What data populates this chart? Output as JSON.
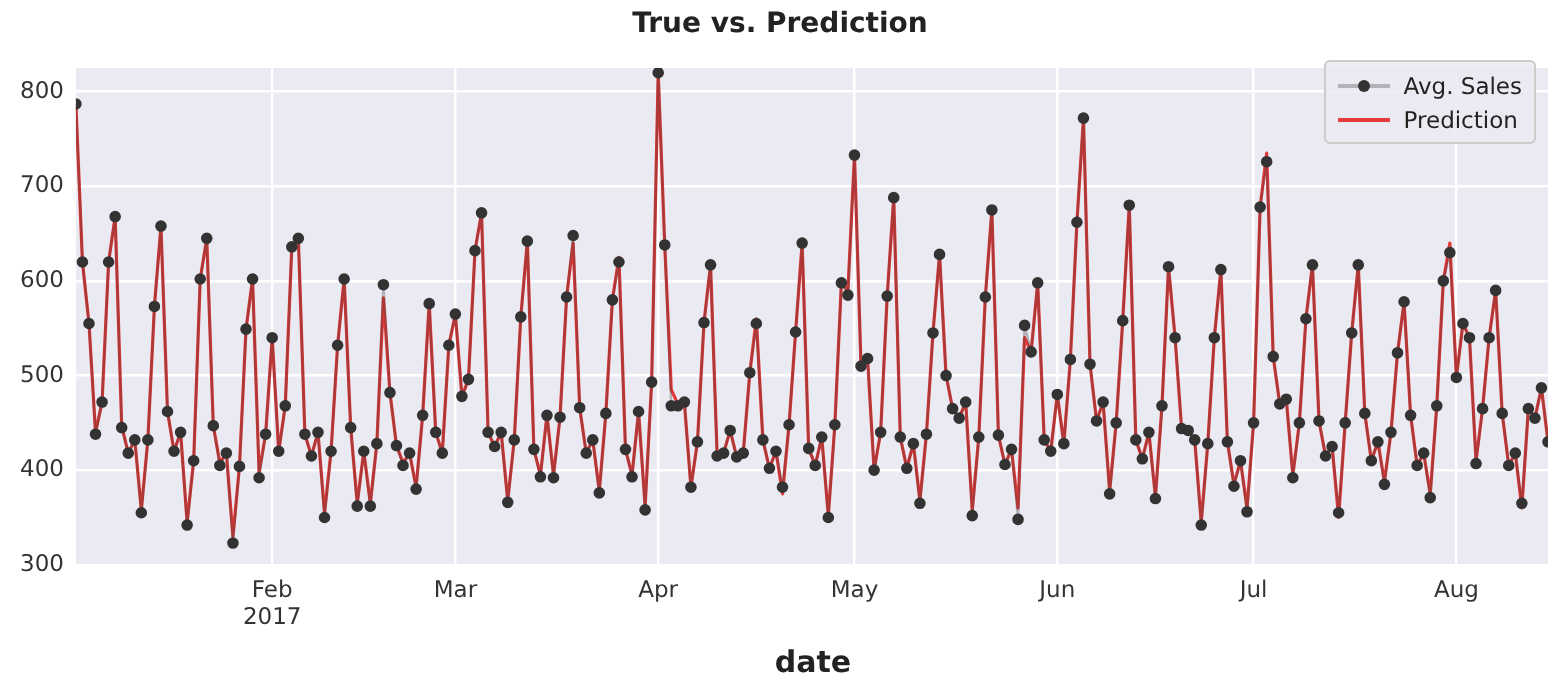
{
  "chart_data": {
    "type": "line",
    "title": "True vs. Prediction",
    "xlabel": "date",
    "x": [
      "2017-01-02",
      "2017-01-03",
      "2017-01-04",
      "2017-01-05",
      "2017-01-06",
      "2017-01-07",
      "2017-01-08",
      "2017-01-09",
      "2017-01-10",
      "2017-01-11",
      "2017-01-12",
      "2017-01-13",
      "2017-01-14",
      "2017-01-15",
      "2017-01-16",
      "2017-01-17",
      "2017-01-18",
      "2017-01-19",
      "2017-01-20",
      "2017-01-21",
      "2017-01-22",
      "2017-01-23",
      "2017-01-24",
      "2017-01-25",
      "2017-01-26",
      "2017-01-27",
      "2017-01-28",
      "2017-01-29",
      "2017-01-30",
      "2017-01-31",
      "2017-02-01",
      "2017-02-02",
      "2017-02-03",
      "2017-02-04",
      "2017-02-05",
      "2017-02-06",
      "2017-02-07",
      "2017-02-08",
      "2017-02-09",
      "2017-02-10",
      "2017-02-11",
      "2017-02-12",
      "2017-02-13",
      "2017-02-14",
      "2017-02-15",
      "2017-02-16",
      "2017-02-17",
      "2017-02-18",
      "2017-02-19",
      "2017-02-20",
      "2017-02-21",
      "2017-02-22",
      "2017-02-23",
      "2017-02-24",
      "2017-02-25",
      "2017-02-26",
      "2017-02-27",
      "2017-02-28",
      "2017-03-01",
      "2017-03-02",
      "2017-03-03",
      "2017-03-04",
      "2017-03-05",
      "2017-03-06",
      "2017-03-07",
      "2017-03-08",
      "2017-03-09",
      "2017-03-10",
      "2017-03-11",
      "2017-03-12",
      "2017-03-13",
      "2017-03-14",
      "2017-03-15",
      "2017-03-16",
      "2017-03-17",
      "2017-03-18",
      "2017-03-19",
      "2017-03-20",
      "2017-03-21",
      "2017-03-22",
      "2017-03-23",
      "2017-03-24",
      "2017-03-25",
      "2017-03-26",
      "2017-03-27",
      "2017-03-28",
      "2017-03-29",
      "2017-03-30",
      "2017-03-31",
      "2017-04-01",
      "2017-04-02",
      "2017-04-03",
      "2017-04-04",
      "2017-04-05",
      "2017-04-06",
      "2017-04-07",
      "2017-04-08",
      "2017-04-09",
      "2017-04-10",
      "2017-04-11",
      "2017-04-12",
      "2017-04-13",
      "2017-04-14",
      "2017-04-15",
      "2017-04-16",
      "2017-04-17",
      "2017-04-18",
      "2017-04-19",
      "2017-04-20",
      "2017-04-21",
      "2017-04-22",
      "2017-04-23",
      "2017-04-24",
      "2017-04-25",
      "2017-04-26",
      "2017-04-27",
      "2017-04-28",
      "2017-04-29",
      "2017-04-30",
      "2017-05-01",
      "2017-05-02",
      "2017-05-03",
      "2017-05-04",
      "2017-05-05",
      "2017-05-06",
      "2017-05-07",
      "2017-05-08",
      "2017-05-09",
      "2017-05-10",
      "2017-05-11",
      "2017-05-12",
      "2017-05-13",
      "2017-05-14",
      "2017-05-15",
      "2017-05-16",
      "2017-05-17",
      "2017-05-18",
      "2017-05-19",
      "2017-05-20",
      "2017-05-21",
      "2017-05-22",
      "2017-05-23",
      "2017-05-24",
      "2017-05-25",
      "2017-05-26",
      "2017-05-27",
      "2017-05-28",
      "2017-05-29",
      "2017-05-30",
      "2017-05-31",
      "2017-06-01",
      "2017-06-02",
      "2017-06-03",
      "2017-06-04",
      "2017-06-05",
      "2017-06-06",
      "2017-06-07",
      "2017-06-08",
      "2017-06-09",
      "2017-06-10",
      "2017-06-11",
      "2017-06-12",
      "2017-06-13",
      "2017-06-14",
      "2017-06-15",
      "2017-06-16",
      "2017-06-17",
      "2017-06-18",
      "2017-06-19",
      "2017-06-20",
      "2017-06-21",
      "2017-06-22",
      "2017-06-23",
      "2017-06-24",
      "2017-06-25",
      "2017-06-26",
      "2017-06-27",
      "2017-06-28",
      "2017-06-29",
      "2017-06-30",
      "2017-07-01",
      "2017-07-02",
      "2017-07-03",
      "2017-07-04",
      "2017-07-05",
      "2017-07-06",
      "2017-07-07",
      "2017-07-08",
      "2017-07-09",
      "2017-07-10",
      "2017-07-11",
      "2017-07-12",
      "2017-07-13",
      "2017-07-14",
      "2017-07-15",
      "2017-07-16",
      "2017-07-17",
      "2017-07-18",
      "2017-07-19",
      "2017-07-20",
      "2017-07-21",
      "2017-07-22",
      "2017-07-23",
      "2017-07-24",
      "2017-07-25",
      "2017-07-26",
      "2017-07-27",
      "2017-07-28",
      "2017-07-29",
      "2017-07-30",
      "2017-07-31",
      "2017-08-01",
      "2017-08-02",
      "2017-08-03",
      "2017-08-04",
      "2017-08-05",
      "2017-08-06",
      "2017-08-07",
      "2017-08-08",
      "2017-08-09",
      "2017-08-10",
      "2017-08-11",
      "2017-08-12",
      "2017-08-13",
      "2017-08-14",
      "2017-08-15"
    ],
    "series": [
      {
        "name": "Avg. Sales",
        "color": "#333333",
        "marker": "circle",
        "values": [
          787,
          620,
          555,
          438,
          472,
          620,
          668,
          445,
          418,
          432,
          355,
          432,
          573,
          658,
          462,
          420,
          440,
          342,
          410,
          602,
          645,
          447,
          405,
          418,
          323,
          404,
          549,
          602,
          392,
          438,
          540,
          420,
          468,
          636,
          645,
          438,
          415,
          440,
          350,
          420,
          532,
          602,
          445,
          362,
          420,
          362,
          428,
          596,
          482,
          426,
          405,
          418,
          380,
          458,
          576,
          440,
          418,
          532,
          565,
          478,
          496,
          632,
          672,
          440,
          425,
          440,
          366,
          432,
          562,
          642,
          422,
          393,
          458,
          392,
          456,
          583,
          648,
          466,
          418,
          432,
          376,
          460,
          580,
          620,
          422,
          393,
          462,
          358,
          493,
          820,
          638,
          468,
          468,
          472,
          382,
          430,
          556,
          617,
          415,
          418,
          442,
          414,
          418,
          503,
          555,
          432,
          402,
          420,
          382,
          448,
          546,
          640,
          423,
          405,
          435,
          350,
          448,
          598,
          585,
          733,
          510,
          518,
          400,
          440,
          584,
          688,
          435,
          402,
          428,
          365,
          438,
          545,
          628,
          500,
          465,
          455,
          472,
          352,
          435,
          583,
          675,
          437,
          406,
          422,
          348,
          553,
          525,
          598,
          432,
          420,
          480,
          428,
          517,
          662,
          772,
          512,
          452,
          472,
          375,
          450,
          558,
          680,
          432,
          412,
          440,
          370,
          468,
          615,
          540,
          444,
          442,
          432,
          342,
          428,
          540,
          612,
          430,
          383,
          410,
          356,
          450,
          678,
          726,
          520,
          470,
          475,
          392,
          450,
          560,
          617,
          452,
          415,
          425,
          355,
          450,
          545,
          617,
          460,
          410,
          430,
          385,
          440,
          524,
          578,
          458,
          405,
          418,
          371,
          468,
          600,
          630,
          498,
          555,
          540,
          407,
          465,
          540,
          590,
          460,
          405,
          418,
          365,
          465,
          455,
          487,
          430
        ]
      },
      {
        "name": "Prediction",
        "color": "#e33b3b",
        "marker": "none",
        "values": [
          787,
          620,
          555,
          440,
          472,
          620,
          668,
          447,
          418,
          432,
          358,
          432,
          573,
          658,
          462,
          420,
          440,
          345,
          410,
          602,
          645,
          447,
          408,
          418,
          330,
          404,
          549,
          602,
          398,
          438,
          540,
          420,
          468,
          636,
          645,
          438,
          415,
          440,
          355,
          420,
          532,
          602,
          445,
          365,
          420,
          365,
          428,
          582,
          482,
          426,
          408,
          418,
          382,
          458,
          576,
          440,
          418,
          532,
          565,
          478,
          496,
          632,
          672,
          440,
          425,
          440,
          368,
          432,
          562,
          642,
          422,
          395,
          458,
          395,
          456,
          583,
          640,
          466,
          418,
          432,
          378,
          460,
          580,
          625,
          422,
          395,
          462,
          362,
          493,
          820,
          638,
          485,
          470,
          472,
          382,
          430,
          556,
          617,
          418,
          418,
          442,
          414,
          418,
          503,
          560,
          432,
          402,
          420,
          375,
          448,
          546,
          640,
          423,
          405,
          435,
          352,
          448,
          598,
          590,
          733,
          510,
          518,
          400,
          440,
          584,
          688,
          435,
          402,
          428,
          368,
          438,
          545,
          628,
          500,
          465,
          455,
          472,
          358,
          435,
          583,
          675,
          437,
          406,
          422,
          360,
          540,
          525,
          598,
          432,
          420,
          480,
          428,
          517,
          662,
          772,
          512,
          452,
          472,
          378,
          450,
          558,
          680,
          432,
          412,
          440,
          372,
          468,
          615,
          540,
          444,
          442,
          432,
          345,
          428,
          540,
          612,
          430,
          385,
          410,
          360,
          450,
          678,
          735,
          520,
          470,
          475,
          395,
          450,
          560,
          617,
          452,
          415,
          425,
          350,
          450,
          545,
          617,
          460,
          410,
          430,
          388,
          440,
          524,
          578,
          458,
          405,
          418,
          375,
          468,
          600,
          640,
          498,
          555,
          540,
          410,
          465,
          540,
          590,
          460,
          405,
          418,
          360,
          465,
          455,
          487,
          430
        ]
      }
    ],
    "xlim": [
      "2017-01-02",
      "2017-08-15"
    ],
    "xticks": [
      {
        "value": "2017-02-01",
        "label": "Feb\n2017"
      },
      {
        "value": "2017-03-01",
        "label": "Mar"
      },
      {
        "value": "2017-04-01",
        "label": "Apr"
      },
      {
        "value": "2017-05-01",
        "label": "May"
      },
      {
        "value": "2017-06-01",
        "label": "Jun"
      },
      {
        "value": "2017-07-01",
        "label": "Jul"
      },
      {
        "value": "2017-08-01",
        "label": "Aug"
      }
    ],
    "ylim": [
      300,
      825
    ],
    "yticks": [
      300,
      400,
      500,
      600,
      700,
      800
    ],
    "grid": true,
    "legend": "top right"
  }
}
